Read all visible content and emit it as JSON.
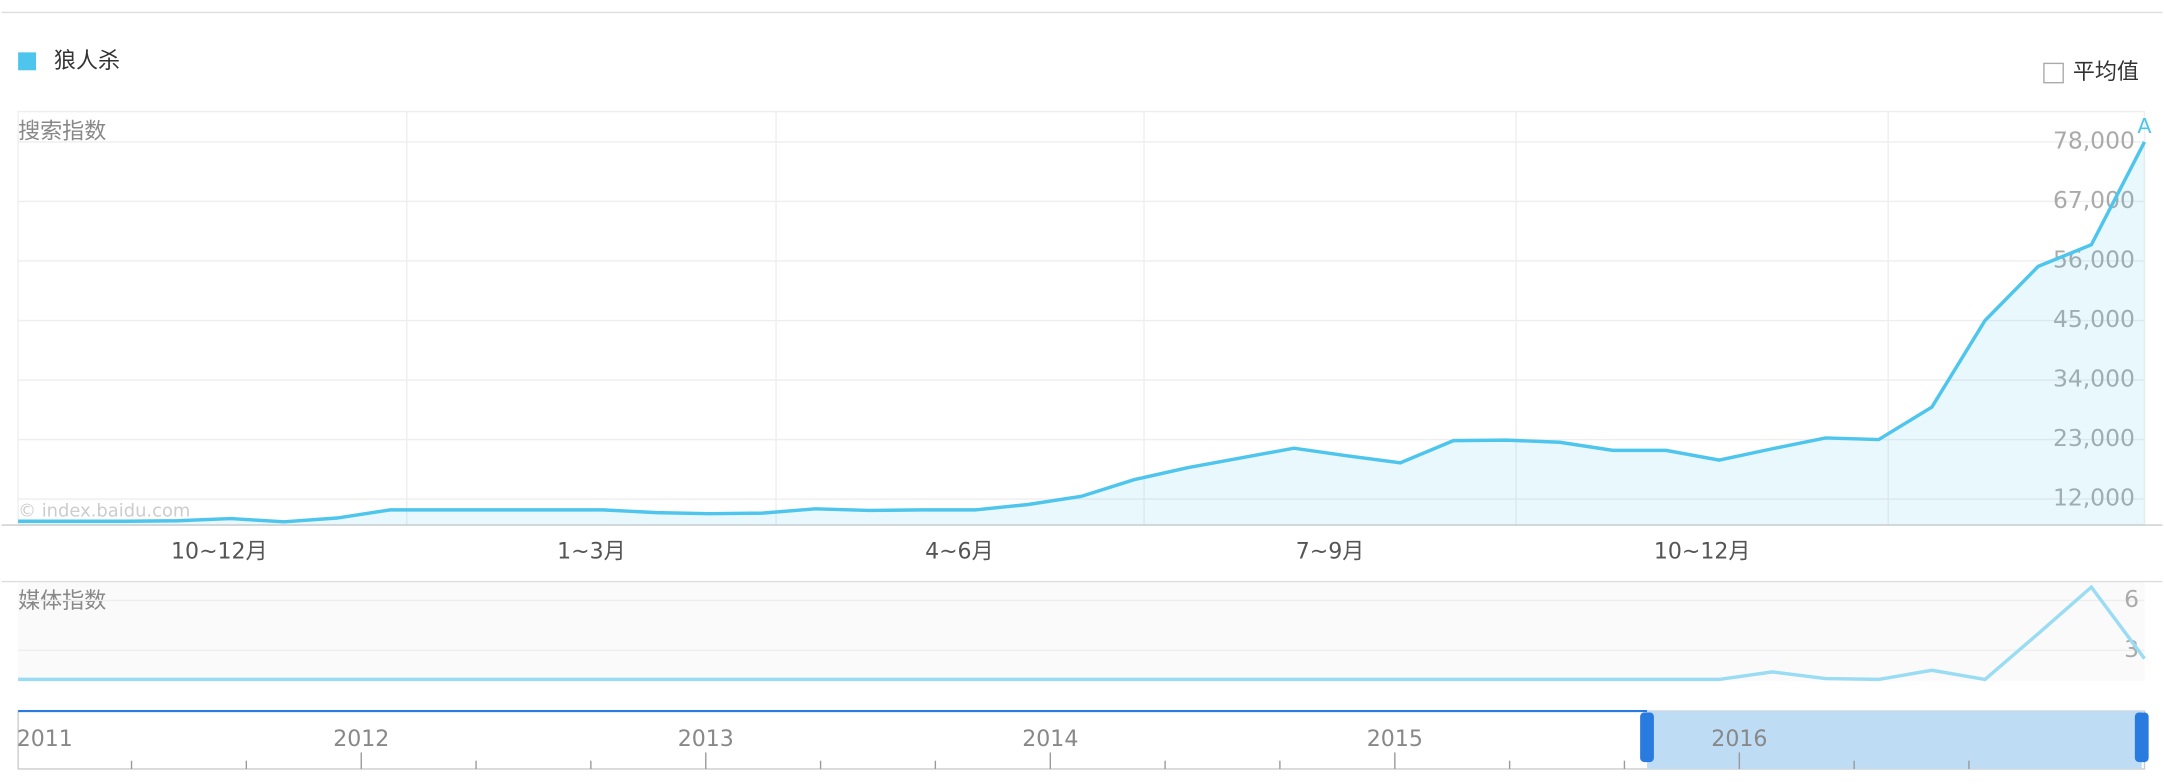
{
  "chart_data": {
    "type": "line",
    "legend": "狼人杀",
    "average_toggle": "平均值",
    "marker": "A",
    "watermark": "© index.baidu.com",
    "search_panel": {
      "title": "搜索指数",
      "x_labels": [
        "10~12月",
        "1~3月",
        "4~6月",
        "7~9月",
        "10~12月"
      ],
      "ylim": [
        7200,
        83600
      ],
      "yticks": [
        {
          "value": 12000,
          "label": "12,000"
        },
        {
          "value": 23000,
          "label": "23,000"
        },
        {
          "value": 34000,
          "label": "34,000"
        },
        {
          "value": 45000,
          "label": "45,000"
        },
        {
          "value": 56000,
          "label": "56,000"
        },
        {
          "value": 67000,
          "label": "67,000"
        },
        {
          "value": 78000,
          "label": "78,000"
        }
      ],
      "series": [
        {
          "name": "狼人杀",
          "color": "#4ec5ec",
          "values": [
            7900,
            7900,
            7900,
            8000,
            8400,
            7800,
            8500,
            10000,
            10000,
            10000,
            10000,
            10000,
            9500,
            9300,
            9400,
            10200,
            9900,
            10000,
            10000,
            11000,
            12500,
            15600,
            17800,
            19600,
            21400,
            20000,
            18700,
            22800,
            22900,
            22500,
            21000,
            21000,
            19200,
            21300,
            23300,
            23000,
            29000,
            45000,
            55000,
            59000,
            78000
          ]
        }
      ]
    },
    "media_panel": {
      "title": "媒体指数",
      "ylim": [
        1.25,
        7.3
      ],
      "yticks": [
        3,
        6
      ],
      "series": [
        {
          "name": "狼人杀",
          "color": "#9adcf3",
          "values": [
            1.25,
            1.25,
            1.25,
            1.25,
            1.25,
            1.25,
            1.25,
            1.25,
            1.25,
            1.25,
            1.25,
            1.25,
            1.25,
            1.25,
            1.25,
            1.25,
            1.25,
            1.25,
            1.25,
            1.25,
            1.25,
            1.25,
            1.25,
            1.25,
            1.25,
            1.25,
            1.25,
            1.25,
            1.25,
            1.25,
            1.25,
            1.25,
            1.25,
            1.7,
            1.3,
            1.25,
            1.8,
            1.25,
            4,
            6.8,
            2.5
          ]
        }
      ]
    },
    "timeline": {
      "years": [
        "2011",
        "2012",
        "2013",
        "2014",
        "2015",
        "2016"
      ]
    }
  }
}
